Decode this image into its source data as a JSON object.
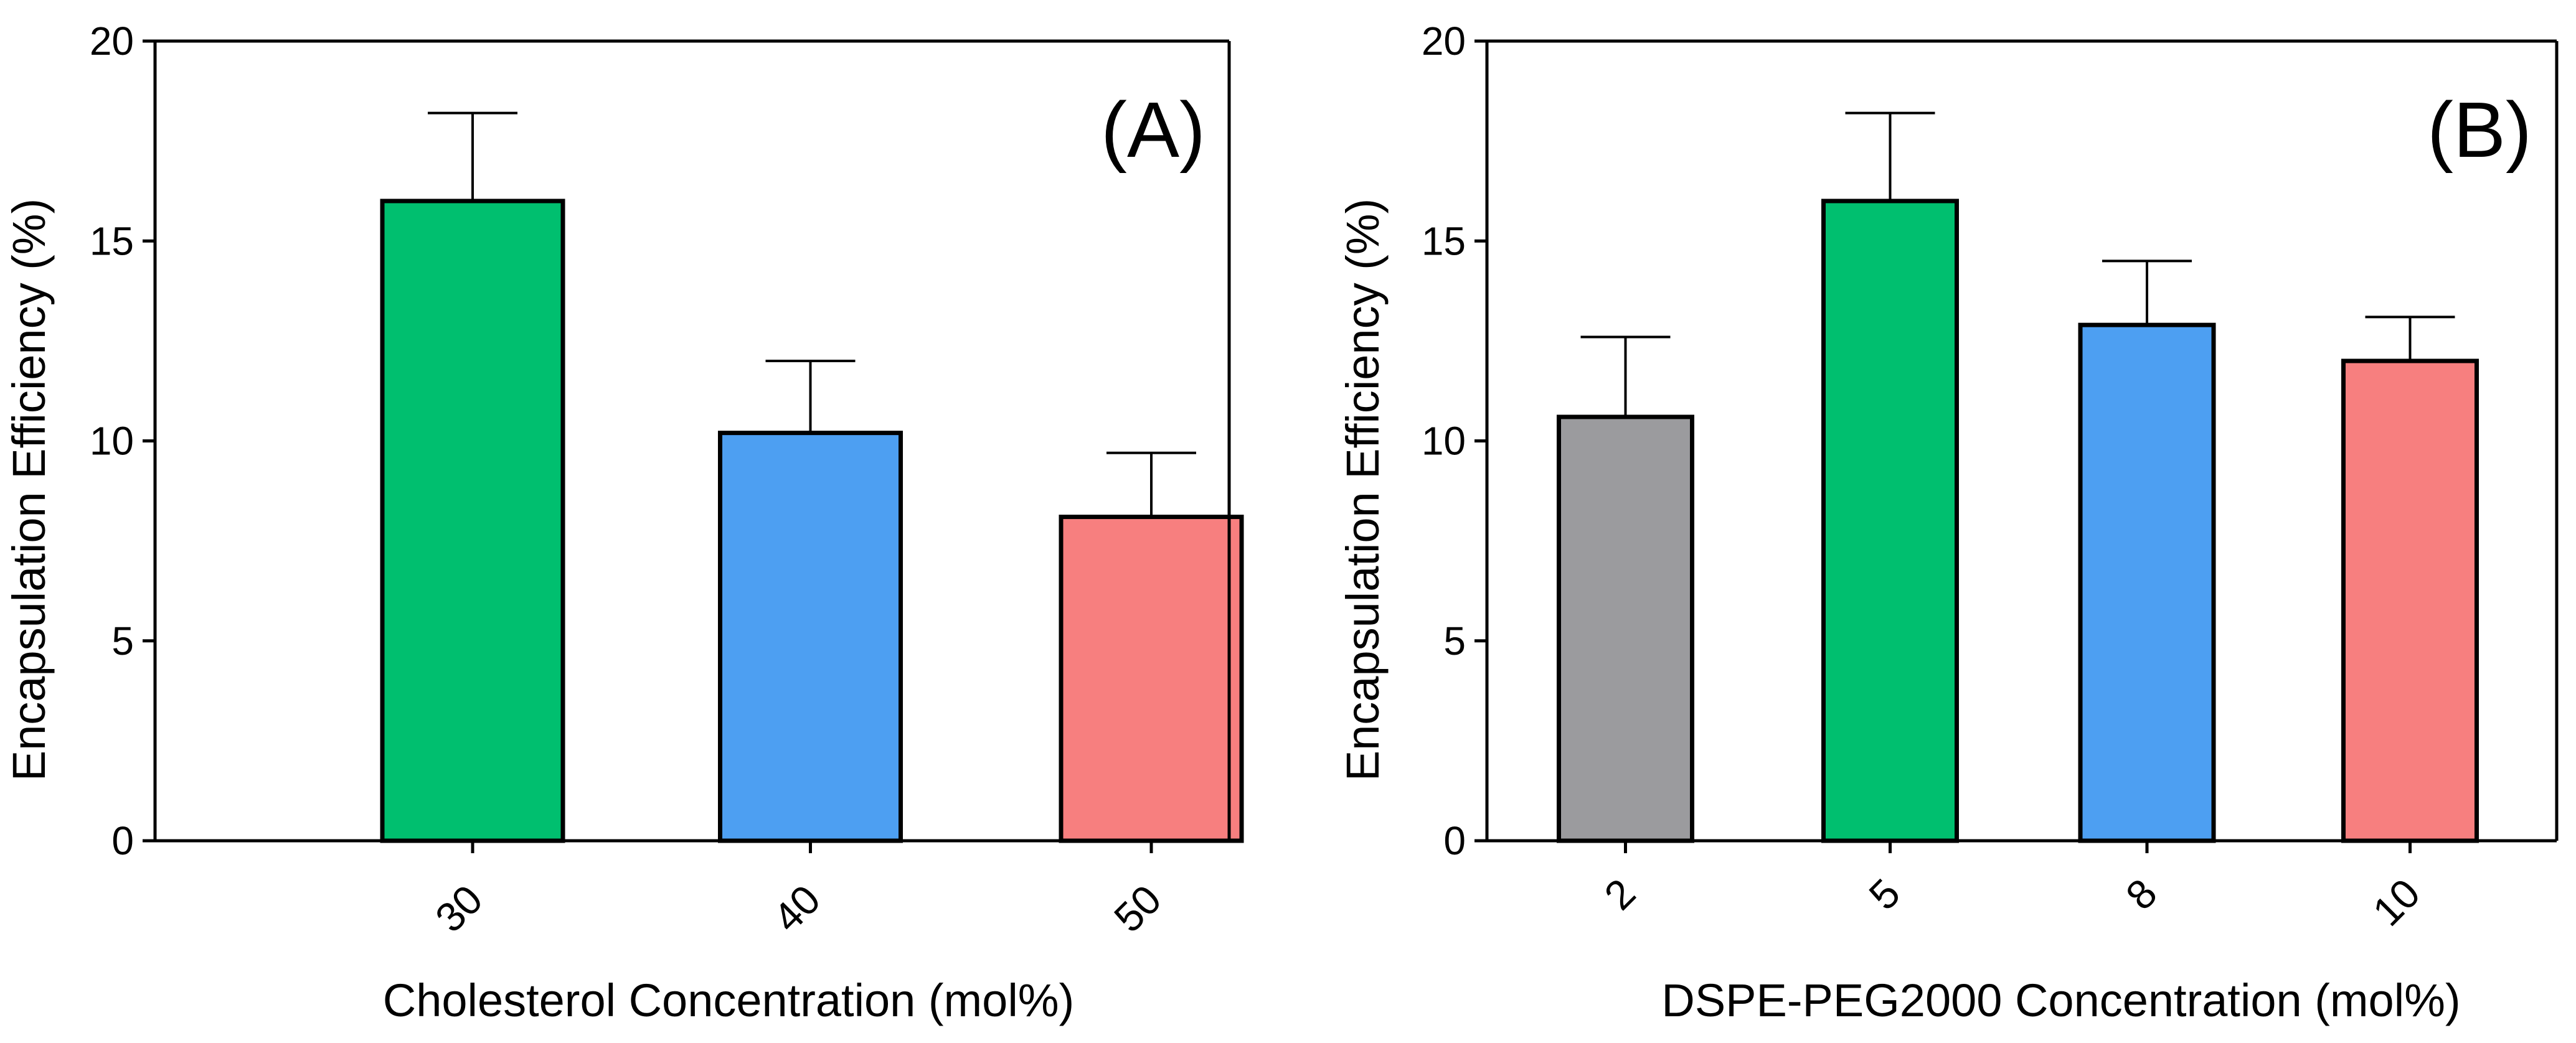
{
  "chart_data": [
    {
      "type": "bar",
      "panel_label": "(A)",
      "title": "",
      "xlabel": "Cholesterol Concentration (mol%)",
      "ylabel": "Encapsulation Efficiency (%)",
      "ylim": [
        0,
        20
      ],
      "yticks": [
        "0",
        "5",
        "10",
        "15",
        "20"
      ],
      "categories": [
        "30",
        "40",
        "50"
      ],
      "values": [
        16.0,
        10.2,
        8.1
      ],
      "errors": [
        2.2,
        1.8,
        1.6
      ],
      "colors": [
        "#00bf6f",
        "#4d9ff2",
        "#f77f7f"
      ]
    },
    {
      "type": "bar",
      "panel_label": "(B)",
      "title": "",
      "xlabel": "DSPE-PEG2000 Concentration (mol%)",
      "ylabel": "Encapsulation Efficiency (%)",
      "ylim": [
        0,
        20
      ],
      "yticks": [
        "0",
        "5",
        "10",
        "15",
        "20"
      ],
      "categories": [
        "2",
        "5",
        "8",
        "10"
      ],
      "values": [
        10.6,
        16.0,
        12.9,
        12.0
      ],
      "errors": [
        2.0,
        2.2,
        1.6,
        1.1
      ],
      "colors": [
        "#9b9b9e",
        "#00bf6f",
        "#4d9ff2",
        "#f77f7f"
      ]
    }
  ]
}
